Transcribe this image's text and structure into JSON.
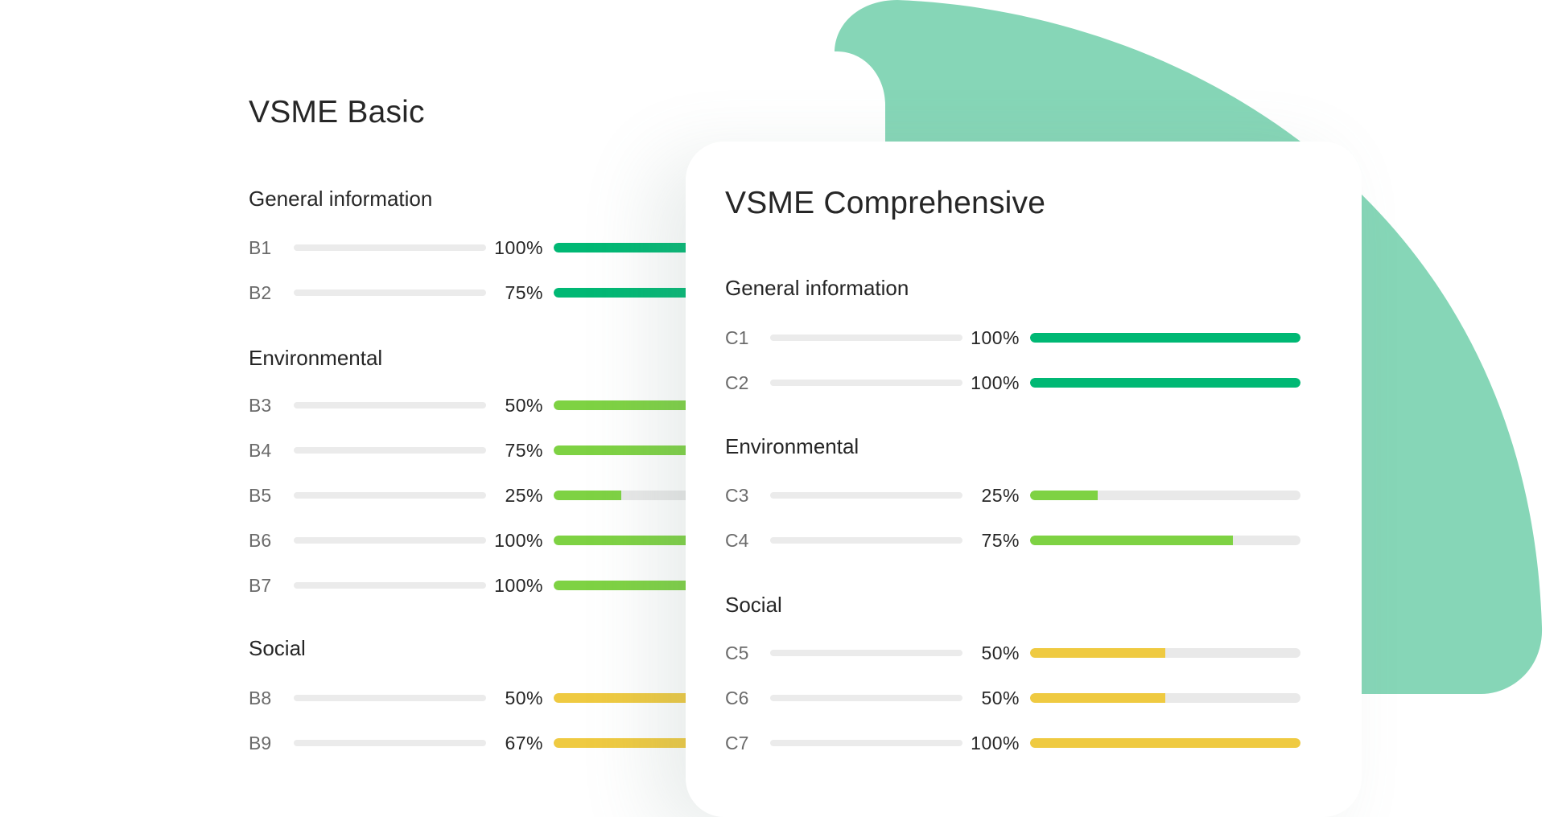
{
  "colors": {
    "governance": "#00b874",
    "environmental": "#7ed243",
    "social": "#efca41",
    "track": "#e9e9e9",
    "blob": "#86d6b7"
  },
  "basic": {
    "title": "VSME Basic",
    "sections": [
      {
        "name": "General information",
        "color": "#00b874",
        "items": [
          {
            "code": "B1",
            "percent": 100,
            "label": "100%"
          },
          {
            "code": "B2",
            "percent": 75,
            "label": "75%"
          }
        ]
      },
      {
        "name": "Environmental",
        "color": "#7ed243",
        "items": [
          {
            "code": "B3",
            "percent": 50,
            "label": "50%"
          },
          {
            "code": "B4",
            "percent": 75,
            "label": "75%"
          },
          {
            "code": "B5",
            "percent": 25,
            "label": "25%"
          },
          {
            "code": "B6",
            "percent": 100,
            "label": "100%"
          },
          {
            "code": "B7",
            "percent": 100,
            "label": "100%"
          }
        ]
      },
      {
        "name": "Social",
        "color": "#efca41",
        "items": [
          {
            "code": "B8",
            "percent": 50,
            "label": "50%"
          },
          {
            "code": "B9",
            "percent": 67,
            "label": "67%"
          }
        ]
      }
    ]
  },
  "comprehensive": {
    "title": "VSME Comprehensive",
    "sections": [
      {
        "name": "General information",
        "color": "#00b874",
        "items": [
          {
            "code": "C1",
            "percent": 100,
            "label": "100%"
          },
          {
            "code": "C2",
            "percent": 100,
            "label": "100%"
          }
        ]
      },
      {
        "name": "Environmental",
        "color": "#7ed243",
        "items": [
          {
            "code": "C3",
            "percent": 25,
            "label": "25%"
          },
          {
            "code": "C4",
            "percent": 75,
            "label": "75%"
          }
        ]
      },
      {
        "name": "Social",
        "color": "#efca41",
        "items": [
          {
            "code": "C5",
            "percent": 50,
            "label": "50%"
          },
          {
            "code": "C6",
            "percent": 50,
            "label": "50%"
          },
          {
            "code": "C7",
            "percent": 100,
            "label": "100%"
          }
        ]
      }
    ]
  }
}
